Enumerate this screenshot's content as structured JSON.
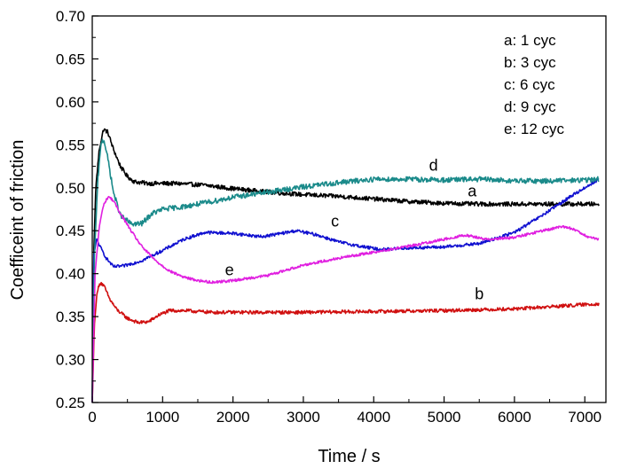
{
  "chart_data": {
    "type": "line",
    "xlabel": "Time / s",
    "ylabel": "Coefficeint of friction",
    "xlim": [
      0,
      7300
    ],
    "ylim": [
      0.25,
      0.7
    ],
    "xticks": [
      0,
      1000,
      2000,
      3000,
      4000,
      5000,
      6000,
      7000
    ],
    "yticks": [
      0.25,
      0.3,
      0.35,
      0.4,
      0.45,
      0.5,
      0.55,
      0.6,
      0.65,
      0.7
    ],
    "ytick_labels": [
      "0.25",
      "0.30",
      "0.35",
      "0.40",
      "0.45",
      "0.50",
      "0.55",
      "0.60",
      "0.65",
      "0.70"
    ],
    "grid": false,
    "legend": {
      "placement": "top-right",
      "entries": [
        "a: 1 cyc",
        "b: 3 cyc",
        "c: 6 cyc",
        "d: 9 cyc",
        "e: 12 cyc"
      ]
    },
    "series": [
      {
        "name": "a",
        "label_pos": [
          5400,
          0.49
        ],
        "color": "#000000",
        "noise": 0.0025,
        "points": [
          [
            0,
            0.25
          ],
          [
            20,
            0.42
          ],
          [
            50,
            0.5
          ],
          [
            100,
            0.545
          ],
          [
            160,
            0.568
          ],
          [
            220,
            0.565
          ],
          [
            300,
            0.545
          ],
          [
            400,
            0.525
          ],
          [
            500,
            0.513
          ],
          [
            600,
            0.507
          ],
          [
            800,
            0.505
          ],
          [
            1200,
            0.505
          ],
          [
            1600,
            0.503
          ],
          [
            2000,
            0.499
          ],
          [
            2500,
            0.495
          ],
          [
            3000,
            0.492
          ],
          [
            3500,
            0.49
          ],
          [
            4000,
            0.487
          ],
          [
            4500,
            0.484
          ],
          [
            5000,
            0.482
          ],
          [
            5500,
            0.481
          ],
          [
            6000,
            0.481
          ],
          [
            6500,
            0.481
          ],
          [
            7000,
            0.481
          ],
          [
            7200,
            0.481
          ]
        ]
      },
      {
        "name": "b",
        "label_pos": [
          5500,
          0.37
        ],
        "color": "#d01010",
        "noise": 0.002,
        "points": [
          [
            0,
            0.25
          ],
          [
            30,
            0.34
          ],
          [
            70,
            0.38
          ],
          [
            120,
            0.39
          ],
          [
            170,
            0.385
          ],
          [
            250,
            0.37
          ],
          [
            350,
            0.358
          ],
          [
            500,
            0.348
          ],
          [
            650,
            0.343
          ],
          [
            800,
            0.344
          ],
          [
            950,
            0.352
          ],
          [
            1100,
            0.357
          ],
          [
            1300,
            0.357
          ],
          [
            1700,
            0.355
          ],
          [
            2200,
            0.355
          ],
          [
            3000,
            0.355
          ],
          [
            4000,
            0.356
          ],
          [
            5000,
            0.357
          ],
          [
            6000,
            0.359
          ],
          [
            6600,
            0.362
          ],
          [
            7000,
            0.364
          ],
          [
            7200,
            0.365
          ]
        ]
      },
      {
        "name": "c",
        "label_pos": [
          3450,
          0.455
        ],
        "color": "#1010d0",
        "noise": 0.0018,
        "points": [
          [
            0,
            0.25
          ],
          [
            20,
            0.42
          ],
          [
            60,
            0.44
          ],
          [
            120,
            0.43
          ],
          [
            200,
            0.418
          ],
          [
            300,
            0.408
          ],
          [
            450,
            0.409
          ],
          [
            700,
            0.415
          ],
          [
            1000,
            0.427
          ],
          [
            1300,
            0.44
          ],
          [
            1600,
            0.448
          ],
          [
            2000,
            0.447
          ],
          [
            2400,
            0.443
          ],
          [
            2700,
            0.447
          ],
          [
            2900,
            0.45
          ],
          [
            3200,
            0.445
          ],
          [
            3500,
            0.437
          ],
          [
            3800,
            0.432
          ],
          [
            4100,
            0.428
          ],
          [
            4500,
            0.43
          ],
          [
            5000,
            0.431
          ],
          [
            5500,
            0.435
          ],
          [
            6000,
            0.448
          ],
          [
            6400,
            0.468
          ],
          [
            6800,
            0.49
          ],
          [
            7100,
            0.505
          ],
          [
            7200,
            0.51
          ]
        ]
      },
      {
        "name": "d",
        "label_pos": [
          4850,
          0.52
        ],
        "color": "#1a8a8a",
        "noise": 0.003,
        "points": [
          [
            0,
            0.25
          ],
          [
            30,
            0.42
          ],
          [
            80,
            0.51
          ],
          [
            130,
            0.555
          ],
          [
            170,
            0.555
          ],
          [
            230,
            0.53
          ],
          [
            300,
            0.495
          ],
          [
            400,
            0.468
          ],
          [
            550,
            0.458
          ],
          [
            700,
            0.458
          ],
          [
            850,
            0.47
          ],
          [
            1000,
            0.475
          ],
          [
            1300,
            0.478
          ],
          [
            1700,
            0.484
          ],
          [
            2000,
            0.489
          ],
          [
            2500,
            0.495
          ],
          [
            3000,
            0.501
          ],
          [
            3500,
            0.506
          ],
          [
            4000,
            0.51
          ],
          [
            4500,
            0.51
          ],
          [
            5000,
            0.509
          ],
          [
            5500,
            0.51
          ],
          [
            6000,
            0.508
          ],
          [
            6500,
            0.508
          ],
          [
            7000,
            0.509
          ],
          [
            7200,
            0.51
          ]
        ]
      },
      {
        "name": "e",
        "label_pos": [
          1950,
          0.398
        ],
        "color": "#e020e0",
        "noise": 0.0015,
        "points": [
          [
            0,
            0.25
          ],
          [
            40,
            0.4
          ],
          [
            100,
            0.455
          ],
          [
            160,
            0.48
          ],
          [
            230,
            0.49
          ],
          [
            300,
            0.485
          ],
          [
            400,
            0.47
          ],
          [
            550,
            0.45
          ],
          [
            700,
            0.432
          ],
          [
            900,
            0.415
          ],
          [
            1100,
            0.403
          ],
          [
            1300,
            0.396
          ],
          [
            1500,
            0.392
          ],
          [
            1700,
            0.39
          ],
          [
            2000,
            0.392
          ],
          [
            2500,
            0.398
          ],
          [
            3000,
            0.41
          ],
          [
            3500,
            0.418
          ],
          [
            4000,
            0.425
          ],
          [
            4500,
            0.432
          ],
          [
            5000,
            0.44
          ],
          [
            5300,
            0.445
          ],
          [
            5600,
            0.44
          ],
          [
            6000,
            0.442
          ],
          [
            6400,
            0.45
          ],
          [
            6700,
            0.455
          ],
          [
            6900,
            0.45
          ],
          [
            7050,
            0.442
          ],
          [
            7200,
            0.44
          ]
        ]
      }
    ]
  }
}
